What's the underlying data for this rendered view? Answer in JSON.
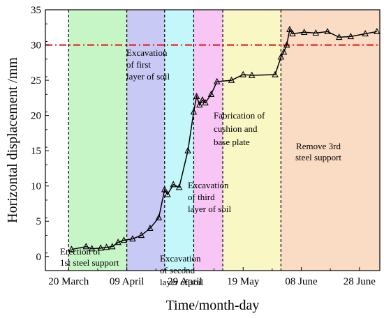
{
  "chart_data": {
    "type": "line",
    "xlabel": "Time/month-day",
    "ylabel": "Horizontal displacement /mm",
    "xlim": [
      "2020-03-12",
      "2020-07-05"
    ],
    "ylim": [
      -2,
      35
    ],
    "x_ticks": [
      {
        "date": "2020-03-20",
        "label": "20 March"
      },
      {
        "date": "2020-04-09",
        "label": "09 April"
      },
      {
        "date": "2020-04-29",
        "label": "29 April"
      },
      {
        "date": "2020-05-19",
        "label": "19 May"
      },
      {
        "date": "2020-06-08",
        "label": "08 June"
      },
      {
        "date": "2020-06-28",
        "label": "28 June"
      }
    ],
    "y_ticks": [
      0,
      5,
      10,
      15,
      20,
      25,
      30,
      35
    ],
    "grid": false,
    "threshold": {
      "value": 30,
      "color": "#e8191c",
      "style": "dash-dot"
    },
    "phases": [
      {
        "start": "2020-03-20",
        "end": "2020-04-09",
        "color": "#c6f5c6",
        "label_lines": [
          "Erection of",
          "1st steel support"
        ]
      },
      {
        "start": "2020-04-09",
        "end": "2020-04-22",
        "color": "#c9c9f5",
        "label_lines": [
          "Excavation",
          "of first",
          "layer of soil"
        ]
      },
      {
        "start": "2020-04-22",
        "end": "2020-05-02",
        "color": "#c4f7f9",
        "label_lines": [
          "Excavation",
          "of second",
          "layer of soil"
        ]
      },
      {
        "start": "2020-05-02",
        "end": "2020-05-12",
        "color": "#f7c6f4",
        "label_lines": [
          "Excavation",
          "of third",
          "layer of soil"
        ]
      },
      {
        "start": "2020-05-12",
        "end": "2020-06-01",
        "color": "#f9f7c4",
        "label_lines": [
          "Fabrication of",
          "cushion and",
          "base plate"
        ]
      },
      {
        "start": "2020-06-01",
        "end": "2020-07-05",
        "color": "#fadcc4",
        "label_lines": [
          "Remove 3rd",
          "steel support"
        ]
      }
    ],
    "series": [
      {
        "marker": "triangle",
        "color": "#000000",
        "points": [
          {
            "x": "2020-03-21",
            "y": 1.0
          },
          {
            "x": "2020-03-26",
            "y": 1.4
          },
          {
            "x": "2020-03-28",
            "y": 1.1
          },
          {
            "x": "2020-03-31",
            "y": 1.2
          },
          {
            "x": "2020-04-02",
            "y": 1.3
          },
          {
            "x": "2020-04-04",
            "y": 1.4
          },
          {
            "x": "2020-04-06",
            "y": 2.0
          },
          {
            "x": "2020-04-08",
            "y": 2.3
          },
          {
            "x": "2020-04-11",
            "y": 2.5
          },
          {
            "x": "2020-04-14",
            "y": 3.0
          },
          {
            "x": "2020-04-17",
            "y": 4.0
          },
          {
            "x": "2020-04-20",
            "y": 5.5
          },
          {
            "x": "2020-04-22",
            "y": 9.5
          },
          {
            "x": "2020-04-23",
            "y": 8.8
          },
          {
            "x": "2020-04-25",
            "y": 10.2
          },
          {
            "x": "2020-04-27",
            "y": 9.8
          },
          {
            "x": "2020-04-30",
            "y": 15.0
          },
          {
            "x": "2020-05-02",
            "y": 20.5
          },
          {
            "x": "2020-05-03",
            "y": 22.7
          },
          {
            "x": "2020-05-04",
            "y": 21.5
          },
          {
            "x": "2020-05-05",
            "y": 22.2
          },
          {
            "x": "2020-05-06",
            "y": 21.8
          },
          {
            "x": "2020-05-08",
            "y": 23.0
          },
          {
            "x": "2020-05-10",
            "y": 24.8
          },
          {
            "x": "2020-05-15",
            "y": 25.0
          },
          {
            "x": "2020-05-19",
            "y": 25.8
          },
          {
            "x": "2020-05-22",
            "y": 25.7
          },
          {
            "x": "2020-05-30",
            "y": 25.8
          },
          {
            "x": "2020-06-01",
            "y": 28.3
          },
          {
            "x": "2020-06-02",
            "y": 29.0
          },
          {
            "x": "2020-06-03",
            "y": 30.0
          },
          {
            "x": "2020-06-04",
            "y": 32.2
          },
          {
            "x": "2020-06-05",
            "y": 31.6
          },
          {
            "x": "2020-06-09",
            "y": 31.8
          },
          {
            "x": "2020-06-13",
            "y": 31.7
          },
          {
            "x": "2020-06-17",
            "y": 31.9
          },
          {
            "x": "2020-06-21",
            "y": 31.1
          },
          {
            "x": "2020-06-25",
            "y": 31.2
          },
          {
            "x": "2020-06-30",
            "y": 31.6
          },
          {
            "x": "2020-07-04",
            "y": 31.9
          }
        ]
      }
    ]
  }
}
